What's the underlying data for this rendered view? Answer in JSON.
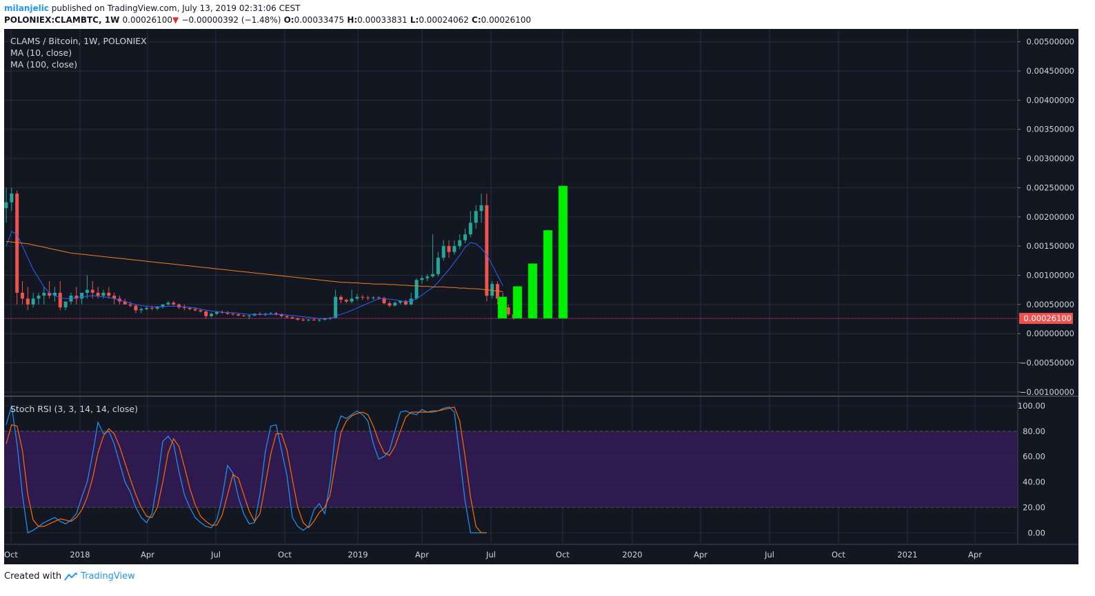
{
  "header": {
    "author": "milanjelic",
    "published_text": "published on TradingView.com, July 13, 2019 02:31:06 CEST",
    "symbol": "POLONIEX:CLAMBTC, 1W",
    "last_price": "0.00026100",
    "down_arrow": "▼",
    "change": "−0.00000392 (−1.48%)",
    "o_label": "O:",
    "o_value": "0.00033475",
    "h_label": "H:",
    "h_value": "0.00033831",
    "l_label": "L:",
    "l_value": "0.00024062",
    "c_label": "C:",
    "c_value": "0.00026100"
  },
  "legend": {
    "title": "CLAMS / Bitcoin, 1W, POLONIEX",
    "ma10": "MA (10, close)",
    "ma100": "MA (100, close)",
    "stoch": "Stoch RSI (3, 3, 14, 14, close)"
  },
  "footer": {
    "created_with": "Created with",
    "brand": "TradingView"
  },
  "colors": {
    "background": "#131722",
    "grid": "#2a2e39",
    "up_candle": "#26a69a",
    "down_candle": "#ef5350",
    "ma10": "#2962ff",
    "ma100": "#f57f17",
    "stoch_k": "#2196f3",
    "stoch_d": "#ff6d00",
    "stoch_band": "#2e1a4f",
    "projection_bars": "#00ee00",
    "last_price_line": "#ff3d8b"
  },
  "chart_data": [
    {
      "type": "candlestick",
      "title": "CLAMS / Bitcoin, 1W, POLONIEX",
      "x_ticks": [
        "Oct",
        "2018",
        "Apr",
        "Jul",
        "Oct",
        "2019",
        "Apr",
        "Jul",
        "Oct",
        "2020",
        "Apr",
        "Jul",
        "Oct",
        "2021",
        "Apr"
      ],
      "y_ticks": [
        "0.00500000",
        "0.00450000",
        "0.00400000",
        "0.00350000",
        "0.00300000",
        "0.00250000",
        "0.00200000",
        "0.00150000",
        "0.00100000",
        "0.00050000",
        "0.00000000",
        "−0.00050000",
        "−0.00100000"
      ],
      "ylim": [
        -0.00106,
        0.00522
      ],
      "last_price_label": "0.00026100",
      "last_price": 0.000261,
      "candles_ohlc": [
        [
          0.00215,
          0.0025,
          0.0019,
          0.00225
        ],
        [
          0.00225,
          0.0025,
          0.0021,
          0.0024
        ],
        [
          0.0024,
          0.00245,
          0.0005,
          0.0007
        ],
        [
          0.0007,
          0.0009,
          0.0005,
          0.0006
        ],
        [
          0.0006,
          0.0008,
          0.0004,
          0.0005
        ],
        [
          0.0005,
          0.0007,
          0.00045,
          0.0006
        ],
        [
          0.0006,
          0.0007,
          0.0005,
          0.00065
        ],
        [
          0.00065,
          0.0008,
          0.0005,
          0.0007
        ],
        [
          0.0007,
          0.0009,
          0.0006,
          0.00065
        ],
        [
          0.00065,
          0.0008,
          0.00055,
          0.0007
        ],
        [
          0.0007,
          0.0009,
          0.0004,
          0.00045
        ],
        [
          0.00045,
          0.0005,
          0.0004,
          0.00055
        ],
        [
          0.00055,
          0.0007,
          0.0005,
          0.00065
        ],
        [
          0.00065,
          0.0008,
          0.0005,
          0.0006
        ],
        [
          0.0006,
          0.0007,
          0.0005,
          0.0007
        ],
        [
          0.0007,
          0.001,
          0.0006,
          0.00075
        ],
        [
          0.00075,
          0.0009,
          0.0006,
          0.0007
        ],
        [
          0.0007,
          0.0008,
          0.0006,
          0.00065
        ],
        [
          0.00065,
          0.00075,
          0.0006,
          0.0007
        ],
        [
          0.0007,
          0.0008,
          0.0006,
          0.00065
        ],
        [
          0.00065,
          0.0007,
          0.0005,
          0.0006
        ],
        [
          0.0006,
          0.00065,
          0.0005,
          0.00055
        ],
        [
          0.00055,
          0.0006,
          0.0005,
          0.0005
        ],
        [
          0.0005,
          0.00055,
          0.00045,
          0.00048
        ],
        [
          0.00048,
          0.0005,
          0.00035,
          0.0004
        ],
        [
          0.0004,
          0.00045,
          0.00035,
          0.00042
        ],
        [
          0.00042,
          0.00046,
          0.0004,
          0.00044
        ],
        [
          0.00044,
          0.00048,
          0.0004,
          0.00043
        ],
        [
          0.00043,
          0.00047,
          0.0004,
          0.00046
        ],
        [
          0.00046,
          0.0005,
          0.00043,
          0.0005
        ],
        [
          0.0005,
          0.00056,
          0.00048,
          0.00053
        ],
        [
          0.00053,
          0.00056,
          0.00048,
          0.0005
        ],
        [
          0.0005,
          0.00052,
          0.00042,
          0.00045
        ],
        [
          0.00045,
          0.0005,
          0.0004,
          0.00044
        ],
        [
          0.00044,
          0.00046,
          0.0004,
          0.00042
        ],
        [
          0.00042,
          0.00045,
          0.00038,
          0.0004
        ],
        [
          0.0004,
          0.00043,
          0.00036,
          0.00038
        ],
        [
          0.00038,
          0.0004,
          0.00025,
          0.0003
        ],
        [
          0.0003,
          0.00036,
          0.00028,
          0.00034
        ],
        [
          0.00034,
          0.00038,
          0.00032,
          0.00037
        ],
        [
          0.00037,
          0.0004,
          0.00034,
          0.00036
        ],
        [
          0.00036,
          0.00039,
          0.00032,
          0.00034
        ],
        [
          0.00034,
          0.00036,
          0.00031,
          0.00033
        ],
        [
          0.00033,
          0.00035,
          0.0003,
          0.00031
        ],
        [
          0.00031,
          0.00033,
          0.00029,
          0.0003
        ],
        [
          0.0003,
          0.00032,
          0.00025,
          0.00031
        ],
        [
          0.00031,
          0.00035,
          0.0003,
          0.00034
        ],
        [
          0.00034,
          0.00037,
          0.00031,
          0.00032
        ],
        [
          0.00032,
          0.00036,
          0.0003,
          0.00034
        ],
        [
          0.00034,
          0.00037,
          0.00033,
          0.00035
        ],
        [
          0.00035,
          0.00037,
          0.00031,
          0.00033
        ],
        [
          0.00033,
          0.00035,
          0.00028,
          0.0003
        ],
        [
          0.0003,
          0.00032,
          0.00026,
          0.00028
        ],
        [
          0.00028,
          0.0003,
          0.00025,
          0.00026
        ],
        [
          0.00026,
          0.00028,
          0.00022,
          0.00024
        ],
        [
          0.00024,
          0.00026,
          0.00021,
          0.00023
        ],
        [
          0.00023,
          0.00025,
          0.00021,
          0.00024
        ],
        [
          0.00024,
          0.00026,
          0.00022,
          0.00023
        ],
        [
          0.00023,
          0.00025,
          0.0002,
          0.00024
        ],
        [
          0.00024,
          0.00027,
          0.00022,
          0.00026
        ],
        [
          0.00026,
          0.00029,
          0.00023,
          0.00027
        ],
        [
          0.00027,
          0.00075,
          0.00026,
          0.00063
        ],
        [
          0.00063,
          0.00066,
          0.00052,
          0.00058
        ],
        [
          0.00058,
          0.0006,
          0.00052,
          0.00055
        ],
        [
          0.00055,
          0.00075,
          0.00052,
          0.0006
        ],
        [
          0.0006,
          0.00068,
          0.00057,
          0.00063
        ],
        [
          0.00063,
          0.00066,
          0.00058,
          0.00062
        ],
        [
          0.00062,
          0.00065,
          0.00057,
          0.00061
        ],
        [
          0.00061,
          0.00064,
          0.00058,
          0.00062
        ],
        [
          0.00062,
          0.00064,
          0.00058,
          0.00061
        ],
        [
          0.00061,
          0.00063,
          0.0005,
          0.00052
        ],
        [
          0.00052,
          0.00056,
          0.00045,
          0.00048
        ],
        [
          0.00048,
          0.00055,
          0.00047,
          0.00053
        ],
        [
          0.00053,
          0.00057,
          0.0005,
          0.00056
        ],
        [
          0.00056,
          0.00058,
          0.00048,
          0.0005
        ],
        [
          0.0005,
          0.0007,
          0.00048,
          0.0006
        ],
        [
          0.0006,
          0.00095,
          0.00058,
          0.00092
        ],
        [
          0.00092,
          0.001,
          0.00085,
          0.00095
        ],
        [
          0.00095,
          0.00102,
          0.0009,
          0.00098
        ],
        [
          0.00098,
          0.0017,
          0.00096,
          0.00102
        ],
        [
          0.00102,
          0.0014,
          0.00098,
          0.0013
        ],
        [
          0.0013,
          0.0016,
          0.00125,
          0.0015
        ],
        [
          0.0015,
          0.0016,
          0.0013,
          0.0014
        ],
        [
          0.0014,
          0.0016,
          0.00135,
          0.0015
        ],
        [
          0.0015,
          0.0017,
          0.00145,
          0.0016
        ],
        [
          0.0016,
          0.0018,
          0.00155,
          0.0017
        ],
        [
          0.0017,
          0.0021,
          0.00165,
          0.0019
        ],
        [
          0.0019,
          0.0022,
          0.0018,
          0.0021
        ],
        [
          0.0021,
          0.0024,
          0.0019,
          0.0022
        ],
        [
          0.0022,
          0.0024,
          0.00055,
          0.00065
        ],
        [
          0.00065,
          0.0009,
          0.0006,
          0.00085
        ],
        [
          0.00085,
          0.0009,
          0.0005,
          0.0006
        ],
        [
          0.0006,
          0.0007,
          0.00042,
          0.00045
        ],
        [
          0.00045,
          0.0005,
          0.0003,
          0.00033
        ],
        [
          0.00033475,
          0.00033831,
          0.00024062,
          0.000261
        ]
      ],
      "series": [
        {
          "name": "MA (10, close)",
          "values": [
            0.0015,
            0.00175,
            0.0017,
            0.0015,
            0.0013,
            0.0011,
            0.00095,
            0.0008,
            0.0007,
            0.00065,
            0.00062,
            0.0006,
            0.0006,
            0.00062,
            0.00063,
            0.00064,
            0.00065,
            0.00064,
            0.00063,
            0.00062,
            0.0006,
            0.00057,
            0.00055,
            0.00052,
            0.0005,
            0.00048,
            0.00047,
            0.00046,
            0.00046,
            0.00046,
            0.00047,
            0.00047,
            0.00047,
            0.00046,
            0.00045,
            0.00044,
            0.00042,
            0.0004,
            0.00039,
            0.00038,
            0.00037,
            0.00036,
            0.00036,
            0.00035,
            0.00034,
            0.00033,
            0.00033,
            0.00033,
            0.00033,
            0.00033,
            0.00033,
            0.00033,
            0.00032,
            0.00031,
            0.0003,
            0.00029,
            0.00028,
            0.00027,
            0.00026,
            0.00026,
            0.00026,
            0.0003,
            0.00033,
            0.00036,
            0.0004,
            0.00044,
            0.00048,
            0.00052,
            0.00056,
            0.0006,
            0.0006,
            0.00059,
            0.00058,
            0.00056,
            0.00055,
            0.00055,
            0.0006,
            0.00066,
            0.00073,
            0.00079,
            0.00088,
            0.00099,
            0.0011,
            0.00122,
            0.00134,
            0.00148,
            0.00156,
            0.00154,
            0.00146,
            0.00135,
            0.00118,
            0.001,
            0.00082
          ]
        },
        {
          "name": "MA (100, close)",
          "values": [
            0.00158,
            0.00157,
            0.00156,
            0.00155,
            0.00154,
            0.00152,
            0.0015,
            0.00148,
            0.00146,
            0.00144,
            0.00142,
            0.0014,
            0.00138,
            0.00137,
            0.00136,
            0.00135,
            0.00134,
            0.00133,
            0.00132,
            0.00131,
            0.0013,
            0.00129,
            0.00128,
            0.00127,
            0.00126,
            0.00125,
            0.00124,
            0.00123,
            0.00122,
            0.00121,
            0.0012,
            0.00119,
            0.00118,
            0.00117,
            0.00116,
            0.00115,
            0.00114,
            0.00113,
            0.00112,
            0.00111,
            0.0011,
            0.00109,
            0.00108,
            0.00107,
            0.00106,
            0.00105,
            0.00104,
            0.00103,
            0.00102,
            0.00101,
            0.001,
            0.00099,
            0.00098,
            0.00097,
            0.00096,
            0.00095,
            0.00094,
            0.00093,
            0.00092,
            0.00091,
            0.0009,
            0.00089,
            0.00088,
            0.00088,
            0.00087,
            0.00087,
            0.00086,
            0.00086,
            0.00085,
            0.00085,
            0.00085,
            0.00084,
            0.00084,
            0.00083,
            0.00083,
            0.00082,
            0.00082,
            0.00081,
            0.00081,
            0.0008,
            0.0008,
            0.0008,
            0.00079,
            0.00079,
            0.00078,
            0.00078,
            0.00077,
            0.00077,
            0.00076,
            0.00075,
            0.00074,
            0.00073,
            0.00072
          ]
        }
      ],
      "projection_bars": [
        0.00063,
        0.00081,
        0.0012,
        0.00177,
        0.00253
      ]
    },
    {
      "type": "line",
      "title": "Stoch RSI (3, 3, 14, 14, close)",
      "y_ticks": [
        "100.00",
        "80.00",
        "60.00",
        "40.00",
        "20.00",
        "0.00"
      ],
      "ylim": [
        -8,
        107
      ],
      "band": [
        20,
        80
      ],
      "series": [
        {
          "name": "K",
          "values": [
            85,
            100,
            70,
            30,
            0,
            2,
            5,
            8,
            10,
            12,
            9,
            7,
            10,
            15,
            28,
            40,
            62,
            87,
            78,
            80,
            70,
            55,
            40,
            32,
            20,
            12,
            8,
            15,
            40,
            72,
            76,
            70,
            48,
            30,
            20,
            12,
            8,
            5,
            4,
            10,
            28,
            53,
            47,
            28,
            15,
            7,
            8,
            30,
            64,
            84,
            85,
            65,
            45,
            12,
            5,
            2,
            5,
            18,
            23,
            15,
            40,
            80,
            92,
            90,
            93,
            96,
            93,
            88,
            70,
            58,
            60,
            65,
            80,
            95,
            96,
            94,
            93,
            97,
            95,
            95,
            96,
            98,
            99,
            95,
            60,
            25,
            0,
            0,
            0,
            0
          ]
        },
        {
          "name": "D",
          "values": [
            70,
            85,
            84,
            65,
            30,
            10,
            5,
            5,
            7,
            9,
            11,
            10,
            9,
            12,
            18,
            28,
            43,
            63,
            76,
            82,
            78,
            68,
            55,
            42,
            30,
            20,
            13,
            12,
            20,
            40,
            63,
            74,
            68,
            52,
            35,
            22,
            13,
            9,
            6,
            6,
            14,
            30,
            46,
            43,
            30,
            17,
            9,
            15,
            38,
            62,
            78,
            78,
            65,
            42,
            20,
            8,
            4,
            9,
            16,
            20,
            30,
            55,
            79,
            88,
            92,
            94,
            95,
            93,
            84,
            72,
            63,
            61,
            68,
            80,
            91,
            95,
            95,
            95,
            95,
            96,
            96,
            97,
            98,
            99,
            88,
            60,
            28,
            5,
            0,
            0
          ]
        }
      ]
    }
  ]
}
